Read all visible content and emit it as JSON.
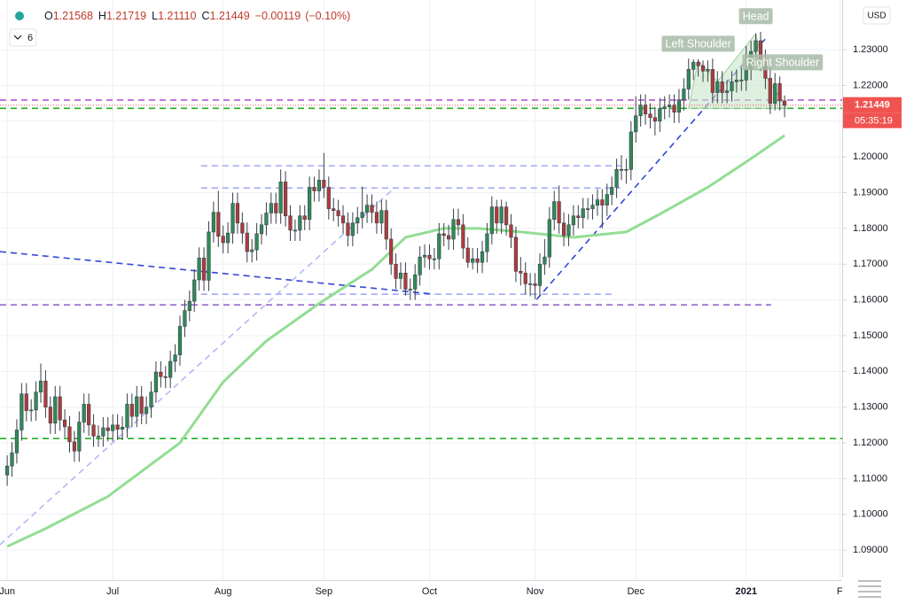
{
  "chart_data": {
    "type": "candlestick",
    "header": {
      "keys": [
        "O",
        "H",
        "L",
        "C"
      ],
      "ohlc_labels": [
        "1.21568",
        "1.21719",
        "1.21110",
        "1.21449"
      ],
      "change": {
        "value": -0.00119,
        "label": "−0.00119"
      },
      "change_pct": {
        "value": -0.1,
        "label": "(−0.10%)"
      },
      "indicators": "6",
      "currency": "USD",
      "countdown": "05:35:19"
    },
    "up_color": "#2e8b57",
    "down_color": "#b23a3a",
    "grid": true,
    "xlim": [
      -1.5,
      174
    ],
    "ylim": [
      1.0816,
      1.2439
    ],
    "xticks": [
      {
        "value": 0,
        "label": "Jun"
      },
      {
        "value": 22,
        "label": "Jul"
      },
      {
        "value": 45,
        "label": "Aug"
      },
      {
        "value": 66,
        "label": "Sep"
      },
      {
        "value": 88,
        "label": "Oct"
      },
      {
        "value": 110,
        "label": "Nov"
      },
      {
        "value": 131,
        "label": "Dec"
      },
      {
        "value": 154,
        "label": "2021"
      },
      {
        "value": 173.5,
        "label": "F"
      }
    ],
    "yticks": [
      {
        "value": 1.09,
        "label": "1.09000"
      },
      {
        "value": 1.1,
        "label": "1.10000"
      },
      {
        "value": 1.11,
        "label": "1.11000"
      },
      {
        "value": 1.12,
        "label": "1.12000"
      },
      {
        "value": 1.13,
        "label": "1.13000"
      },
      {
        "value": 1.14,
        "label": "1.14000"
      },
      {
        "value": 1.15,
        "label": "1.15000"
      },
      {
        "value": 1.16,
        "label": "1.16000"
      },
      {
        "value": 1.17,
        "label": "1.17000"
      },
      {
        "value": 1.18,
        "label": "1.18000"
      },
      {
        "value": 1.19,
        "label": "1.19000"
      },
      {
        "value": 1.2,
        "label": "1.20000"
      },
      {
        "value": 1.21,
        "label": "1.21000"
      },
      {
        "value": 1.22,
        "label": "1.22000"
      },
      {
        "value": 1.23,
        "label": "1.23000"
      }
    ],
    "x": [
      0,
      1,
      2,
      3,
      4,
      5,
      6,
      7,
      8,
      9,
      10,
      11,
      12,
      13,
      14,
      15,
      16,
      17,
      18,
      19,
      20,
      21,
      22,
      23,
      24,
      25,
      26,
      27,
      28,
      29,
      30,
      31,
      32,
      33,
      34,
      35,
      36,
      37,
      38,
      39,
      40,
      41,
      42,
      43,
      44,
      45,
      46,
      47,
      48,
      49,
      50,
      51,
      52,
      53,
      54,
      55,
      56,
      57,
      58,
      59,
      60,
      61,
      62,
      63,
      64,
      65,
      66,
      67,
      68,
      69,
      70,
      71,
      72,
      73,
      74,
      75,
      76,
      77,
      78,
      79,
      80,
      81,
      82,
      83,
      84,
      85,
      86,
      87,
      88,
      89,
      90,
      91,
      92,
      93,
      94,
      95,
      96,
      97,
      98,
      99,
      100,
      101,
      102,
      103,
      104,
      105,
      106,
      107,
      108,
      109,
      110,
      111,
      112,
      113,
      114,
      115,
      116,
      117,
      118,
      119,
      120,
      121,
      122,
      123,
      124,
      125,
      126,
      127,
      128,
      129,
      130,
      131,
      132,
      133,
      134,
      135,
      136,
      137,
      138,
      139,
      140,
      141,
      142,
      143,
      144,
      145,
      146,
      147,
      148,
      149,
      150,
      151,
      152,
      153,
      154,
      155,
      156,
      157,
      158,
      159,
      160,
      161,
      162
    ],
    "open": [
      1.111,
      1.1135,
      1.1172,
      1.1236,
      1.1337,
      1.129,
      1.1292,
      1.1342,
      1.1373,
      1.13,
      1.1255,
      1.1329,
      1.1264,
      1.1245,
      1.1203,
      1.1177,
      1.1258,
      1.1308,
      1.125,
      1.1219,
      1.1219,
      1.1242,
      1.1234,
      1.125,
      1.1238,
      1.1244,
      1.1308,
      1.1274,
      1.1329,
      1.1282,
      1.13,
      1.1342,
      1.1398,
      1.1385,
      1.1383,
      1.1428,
      1.1446,
      1.1526,
      1.157,
      1.1596,
      1.1656,
      1.1717,
      1.1655,
      1.179,
      1.1845,
      1.1778,
      1.176,
      1.1787,
      1.187,
      1.1815,
      1.1787,
      1.1735,
      1.174,
      1.1785,
      1.181,
      1.1843,
      1.187,
      1.1843,
      1.193,
      1.1835,
      1.1795,
      1.1795,
      1.1835,
      1.1825,
      1.1915,
      1.1905,
      1.1935,
      1.1915,
      1.1855,
      1.185,
      1.1835,
      1.1815,
      1.178,
      1.1815,
      1.183,
      1.1845,
      1.1865,
      1.1845,
      1.1815,
      1.185,
      1.177,
      1.17,
      1.166,
      1.1675,
      1.163,
      1.163,
      1.167,
      1.172,
      1.1725,
      1.1715,
      1.1715,
      1.1785,
      1.178,
      1.177,
      1.1825,
      1.181,
      1.1745,
      1.1705,
      1.1715,
      1.1705,
      1.1735,
      1.1785,
      1.186,
      1.1815,
      1.186,
      1.181,
      1.1775,
      1.168,
      1.1675,
      1.1645,
      1.1645,
      1.164,
      1.17,
      1.172,
      1.1825,
      1.1875,
      1.1815,
      1.178,
      1.181,
      1.1835,
      1.183,
      1.1855,
      1.1855,
      1.1865,
      1.188,
      1.1865,
      1.1895,
      1.1915,
      1.1965,
      1.1965,
      1.1965,
      1.207,
      1.2115,
      1.2145,
      1.212,
      1.211,
      1.21,
      1.2135,
      1.214,
      1.2145,
      1.2125,
      1.216,
      1.219,
      1.2245,
      1.2265,
      1.2255,
      1.224,
      1.2245,
      1.218,
      1.221,
      1.218,
      1.2185,
      1.221,
      1.2215,
      1.2215,
      1.2245,
      1.2295,
      1.2325,
      1.227,
      1.222,
      1.215,
      1.2205,
      1.21568
    ],
    "high": [
      1.1165,
      1.1202,
      1.1266,
      1.1367,
      1.1367,
      1.1322,
      1.1372,
      1.1422,
      1.1403,
      1.133,
      1.1359,
      1.1359,
      1.1294,
      1.1275,
      1.1233,
      1.1288,
      1.1338,
      1.1338,
      1.128,
      1.1249,
      1.1272,
      1.1272,
      1.128,
      1.128,
      1.1274,
      1.1338,
      1.1338,
      1.1359,
      1.1359,
      1.133,
      1.1372,
      1.1428,
      1.1428,
      1.1415,
      1.1458,
      1.1476,
      1.1556,
      1.16,
      1.1626,
      1.1686,
      1.1747,
      1.1747,
      1.182,
      1.1875,
      1.1905,
      1.1808,
      1.1817,
      1.19,
      1.19,
      1.1845,
      1.1817,
      1.177,
      1.1815,
      1.184,
      1.1873,
      1.19,
      1.19,
      1.1965,
      1.196,
      1.1865,
      1.1825,
      1.1865,
      1.1865,
      1.1945,
      1.1945,
      1.1965,
      1.2011,
      1.1945,
      1.1885,
      1.188,
      1.1865,
      1.1845,
      1.1845,
      1.186,
      1.1917,
      1.1895,
      1.1895,
      1.1875,
      1.188,
      1.188,
      1.18,
      1.173,
      1.1705,
      1.1705,
      1.166,
      1.17,
      1.175,
      1.1755,
      1.1755,
      1.1745,
      1.1815,
      1.1815,
      1.181,
      1.1855,
      1.1855,
      1.184,
      1.1775,
      1.1745,
      1.1745,
      1.1765,
      1.1815,
      1.189,
      1.188,
      1.188,
      1.1875,
      1.184,
      1.1805,
      1.172,
      1.1705,
      1.1675,
      1.1675,
      1.173,
      1.177,
      1.186,
      1.1905,
      1.192,
      1.1845,
      1.184,
      1.1865,
      1.1865,
      1.1885,
      1.1885,
      1.1895,
      1.191,
      1.191,
      1.1925,
      1.1945,
      1.1995,
      1.2005,
      1.1995,
      1.21,
      1.217,
      1.2175,
      1.2175,
      1.215,
      1.214,
      1.2165,
      1.217,
      1.2175,
      1.2175,
      1.219,
      1.222,
      1.2275,
      1.2273,
      1.2273,
      1.227,
      1.227,
      1.2275,
      1.224,
      1.224,
      1.2215,
      1.224,
      1.2245,
      1.225,
      1.231,
      1.2325,
      1.2345,
      1.235,
      1.23,
      1.225,
      1.2235,
      1.2225,
      1.21719
    ],
    "low": [
      1.108,
      1.1105,
      1.1142,
      1.1206,
      1.126,
      1.126,
      1.1262,
      1.1312,
      1.127,
      1.1225,
      1.1225,
      1.1234,
      1.1215,
      1.1173,
      1.1147,
      1.1147,
      1.1228,
      1.122,
      1.1189,
      1.1189,
      1.1189,
      1.1204,
      1.1204,
      1.1208,
      1.1208,
      1.1214,
      1.1244,
      1.1244,
      1.1252,
      1.1252,
      1.127,
      1.1312,
      1.1355,
      1.1353,
      1.1353,
      1.1398,
      1.1416,
      1.1496,
      1.154,
      1.1566,
      1.1626,
      1.1625,
      1.1625,
      1.176,
      1.1748,
      1.173,
      1.173,
      1.1757,
      1.1785,
      1.1757,
      1.1705,
      1.1705,
      1.171,
      1.1755,
      1.178,
      1.1813,
      1.1813,
      1.1813,
      1.1805,
      1.1765,
      1.1765,
      1.1765,
      1.1795,
      1.1795,
      1.1875,
      1.1875,
      1.1885,
      1.1825,
      1.182,
      1.1805,
      1.1785,
      1.175,
      1.175,
      1.1785,
      1.18,
      1.1815,
      1.1815,
      1.1785,
      1.1785,
      1.174,
      1.167,
      1.163,
      1.163,
      1.1612,
      1.16,
      1.16,
      1.164,
      1.169,
      1.1685,
      1.1685,
      1.1685,
      1.175,
      1.174,
      1.174,
      1.178,
      1.1715,
      1.169,
      1.1685,
      1.1675,
      1.1675,
      1.1705,
      1.1755,
      1.1785,
      1.1785,
      1.178,
      1.1745,
      1.165,
      1.164,
      1.1615,
      1.161,
      1.1602,
      1.161,
      1.167,
      1.169,
      1.1795,
      1.1785,
      1.175,
      1.175,
      1.178,
      1.18,
      1.18,
      1.1825,
      1.1825,
      1.1835,
      1.18,
      1.1835,
      1.1865,
      1.1885,
      1.1935,
      1.1925,
      1.1935,
      1.204,
      1.2085,
      1.209,
      1.208,
      1.206,
      1.207,
      1.2105,
      1.211,
      1.2095,
      1.2095,
      1.213,
      1.216,
      1.2215,
      1.2225,
      1.221,
      1.221,
      1.215,
      1.215,
      1.215,
      1.215,
      1.2155,
      1.218,
      1.2185,
      1.2185,
      1.2215,
      1.2265,
      1.224,
      1.219,
      1.212,
      1.213,
      1.213,
      1.2111
    ],
    "close": [
      1.1135,
      1.1172,
      1.1236,
      1.1337,
      1.129,
      1.1292,
      1.1342,
      1.1373,
      1.13,
      1.1255,
      1.1329,
      1.1264,
      1.1245,
      1.1203,
      1.1177,
      1.1258,
      1.1308,
      1.125,
      1.1219,
      1.1219,
      1.1242,
      1.1234,
      1.125,
      1.1238,
      1.1244,
      1.1308,
      1.1274,
      1.1329,
      1.1282,
      1.13,
      1.1342,
      1.1398,
      1.1385,
      1.1383,
      1.1428,
      1.1446,
      1.1526,
      1.157,
      1.1596,
      1.1656,
      1.1717,
      1.1655,
      1.179,
      1.1845,
      1.1778,
      1.176,
      1.1787,
      1.187,
      1.1815,
      1.1787,
      1.1735,
      1.174,
      1.1785,
      1.181,
      1.1843,
      1.187,
      1.1843,
      1.193,
      1.1835,
      1.1795,
      1.1795,
      1.1835,
      1.1825,
      1.1915,
      1.1905,
      1.1935,
      1.1915,
      1.1855,
      1.185,
      1.1835,
      1.1815,
      1.178,
      1.1815,
      1.183,
      1.1845,
      1.1865,
      1.1845,
      1.1815,
      1.185,
      1.177,
      1.17,
      1.166,
      1.1675,
      1.163,
      1.163,
      1.167,
      1.172,
      1.1725,
      1.1715,
      1.1715,
      1.1785,
      1.178,
      1.177,
      1.1825,
      1.181,
      1.1745,
      1.1705,
      1.1715,
      1.1705,
      1.1735,
      1.1785,
      1.186,
      1.1815,
      1.186,
      1.181,
      1.1775,
      1.168,
      1.1675,
      1.1645,
      1.1645,
      1.164,
      1.17,
      1.172,
      1.1825,
      1.1875,
      1.1815,
      1.178,
      1.181,
      1.1835,
      1.183,
      1.1855,
      1.1855,
      1.1865,
      1.188,
      1.1865,
      1.1895,
      1.1915,
      1.1965,
      1.1965,
      1.1965,
      1.207,
      1.2115,
      1.2145,
      1.212,
      1.211,
      1.21,
      1.2135,
      1.214,
      1.2145,
      1.2125,
      1.216,
      1.219,
      1.2245,
      1.2265,
      1.2255,
      1.224,
      1.2245,
      1.218,
      1.221,
      1.218,
      1.2185,
      1.221,
      1.2215,
      1.2215,
      1.2245,
      1.2295,
      1.2325,
      1.227,
      1.222,
      1.215,
      1.2205,
      1.21568,
      1.21449
    ],
    "moving_average": {
      "color": "#93dd93",
      "x": [
        0,
        8,
        21,
        36,
        45,
        54,
        65,
        76,
        83,
        91,
        98,
        107,
        118,
        129,
        136,
        146,
        155,
        162
      ],
      "values": [
        1.091,
        1.096,
        1.105,
        1.12,
        1.137,
        1.1485,
        1.159,
        1.1685,
        1.1775,
        1.18,
        1.18,
        1.179,
        1.1775,
        1.179,
        1.184,
        1.1915,
        1.1995,
        1.206
      ]
    },
    "lines": [
      {
        "color": "#b04ccf",
        "x": [
          -1.5,
          174
        ],
        "values": [
          1.2159,
          1.2159
        ]
      },
      {
        "color": "#22b022",
        "x": [
          -1.5,
          174
        ],
        "values": [
          1.2136,
          1.2136
        ]
      },
      {
        "color": "#22b022",
        "x": [
          -1.5,
          174
        ],
        "values": [
          1.1212,
          1.1212
        ]
      },
      {
        "color": "#8a5cc8",
        "x": [
          -1.5,
          159.2
        ],
        "values": [
          1.1586,
          1.1586
        ]
      },
      {
        "color": "#a3a9f5",
        "x": [
          40.4,
          127.8
        ],
        "values": [
          1.1975,
          1.1975
        ]
      },
      {
        "color": "#a3a9f5",
        "x": [
          40.4,
          127.8
        ],
        "values": [
          1.1913,
          1.1913
        ]
      },
      {
        "color": "#a3a9f5",
        "x": [
          40.4,
          126.9
        ],
        "values": [
          1.1616,
          1.1616
        ]
      },
      {
        "color": "#3347d6",
        "x": [
          -1.5,
          89
        ],
        "values": [
          1.1735,
          1.1616
        ]
      },
      {
        "color": "#3347d6",
        "x": [
          110.3,
          158.3
        ],
        "values": [
          1.1601,
          1.2335
        ]
      },
      {
        "color": "#b3b8f5",
        "x": [
          -1.5,
          80.7
        ],
        "values": [
          1.0915,
          1.1913
        ]
      }
    ],
    "pattern": {
      "color": "#c8e6c9",
      "x": [
        142,
        144,
        148,
        156,
        158,
        162.5
      ],
      "values": [
        1.2136,
        1.227,
        1.2211,
        1.2345,
        1.2228,
        1.2136
      ],
      "labels": [
        {
          "text": "Left Shoulder",
          "x": 144,
          "value": 1.2315
        },
        {
          "text": "Head",
          "x": 156,
          "value": 1.2392
        },
        {
          "text": "Right Shoulder",
          "x": 161.6,
          "value": 1.2263
        }
      ]
    }
  }
}
